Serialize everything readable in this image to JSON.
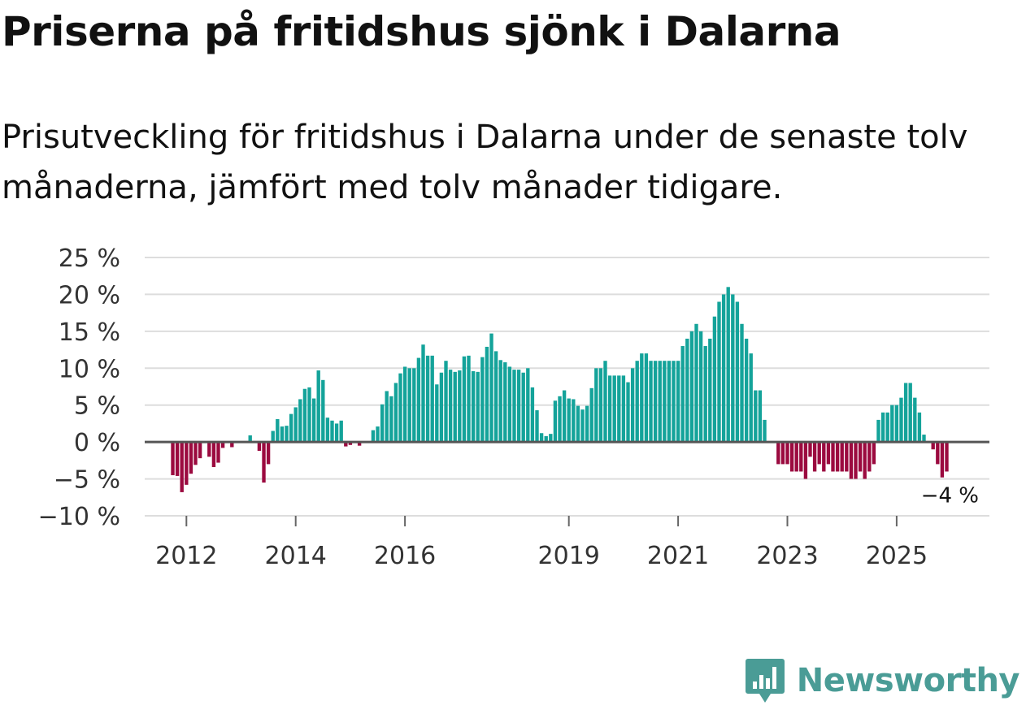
{
  "title": "Priserna på fritidshus sjönk i Dalarna",
  "subtitle": "Prisutveckling för fritidshus i Dalarna under de senaste tolv månaderna, jämfört med tolv månader tidigare.",
  "brand": {
    "name": "Newsworthy",
    "icon": "newsworthy-logo-icon"
  },
  "colors": {
    "positive": "#14a39a",
    "negative": "#9b0a3f",
    "zero_line": "#555555",
    "grid": "#dddddd"
  },
  "chart_data": {
    "type": "bar",
    "title": "",
    "xlabel": "",
    "ylabel": "",
    "x_start": "2011-01",
    "ylim": [
      -10,
      25
    ],
    "y_ticks": [
      {
        "value": 25,
        "label": "25 %"
      },
      {
        "value": 20,
        "label": "20 %"
      },
      {
        "value": 15,
        "label": "15 %"
      },
      {
        "value": 10,
        "label": "10 %"
      },
      {
        "value": 5,
        "label": "5 %"
      },
      {
        "value": 0,
        "label": "0 %"
      },
      {
        "value": -5,
        "label": "−5 %"
      },
      {
        "value": -10,
        "label": "−10 %"
      }
    ],
    "x_ticks": [
      {
        "label": "2012",
        "month_index": 12
      },
      {
        "label": "2014",
        "month_index": 36
      },
      {
        "label": "2016",
        "month_index": 60
      },
      {
        "label": "2019",
        "month_index": 96
      },
      {
        "label": "2021",
        "month_index": 120
      },
      {
        "label": "2023",
        "month_index": 144
      },
      {
        "label": "2025",
        "month_index": 168
      }
    ],
    "grid": true,
    "legend": "none",
    "annotation": {
      "label": "−4 %",
      "value": -4
    },
    "values": [
      null,
      null,
      null,
      null,
      null,
      null,
      null,
      null,
      null,
      -4.5,
      -4.6,
      -6.8,
      -5.8,
      -4.3,
      -3.1,
      -2.2,
      0,
      -2.0,
      -3.4,
      -2.8,
      -0.8,
      0,
      -0.7,
      0,
      0,
      0,
      0.9,
      0,
      -1.2,
      -5.5,
      -3.0,
      1.5,
      3.1,
      2.1,
      2.2,
      3.8,
      4.7,
      5.8,
      7.2,
      7.4,
      5.9,
      9.7,
      8.4,
      3.3,
      2.9,
      2.5,
      2.9,
      -0.6,
      -0.4,
      0,
      -0.5,
      0,
      0,
      1.6,
      2.1,
      5.1,
      6.9,
      6.2,
      8.0,
      9.3,
      10.2,
      10.0,
      10.0,
      11.4,
      13.2,
      11.7,
      11.7,
      7.8,
      9.4,
      11.0,
      9.8,
      9.5,
      9.7,
      11.6,
      11.7,
      9.6,
      9.5,
      11.5,
      12.9,
      14.7,
      12.3,
      11.1,
      10.8,
      10.2,
      9.8,
      9.8,
      9.4,
      10.0,
      7.4,
      4.3,
      1.2,
      0.8,
      1.1,
      5.6,
      6.2,
      7.0,
      5.9,
      5.8,
      4.9,
      4.4,
      4.9,
      7.3,
      10.0,
      10.0,
      11.0,
      9.0,
      9.0,
      9.0,
      9.0,
      8.1,
      10.0,
      11.0,
      12.0,
      12.0,
      11.0,
      11.0,
      11.0,
      11.0,
      11.0,
      11.0,
      11.0,
      13.0,
      14.0,
      15.0,
      16.0,
      15.0,
      13.0,
      14.0,
      17.0,
      19.0,
      20.0,
      21.0,
      20.0,
      19.0,
      16.0,
      14.0,
      12.0,
      7.0,
      7.0,
      3.0,
      0,
      0,
      -3.0,
      -3.0,
      -3.0,
      -4.0,
      -4.0,
      -4.0,
      -5.0,
      -2.0,
      -4.0,
      -3.0,
      -4.0,
      -3.0,
      -4.0,
      -4.0,
      -4.0,
      -4.0,
      -5.0,
      -5.0,
      -4.0,
      -5.0,
      -4.0,
      -3.0,
      3.0,
      4.0,
      4.0,
      5.0,
      5.0,
      6.0,
      8.0,
      8.0,
      6.0,
      4.0,
      1.0,
      0,
      -1.0,
      -3.0,
      -4.8,
      -4.0
    ]
  }
}
